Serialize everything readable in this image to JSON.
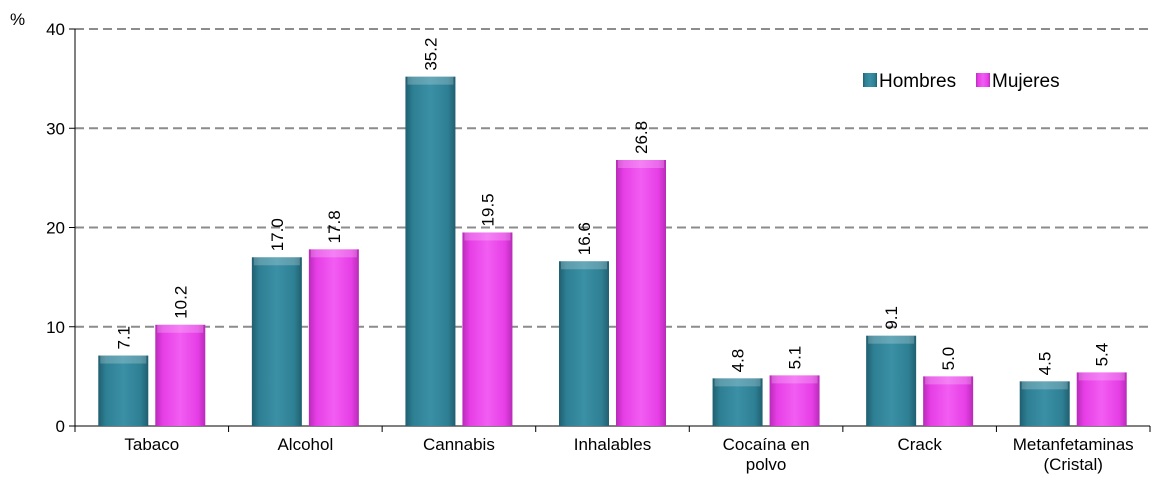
{
  "chart_data": {
    "type": "bar",
    "title": "",
    "xlabel": "",
    "ylabel": "%",
    "ylim": [
      0,
      40
    ],
    "yticks": [
      0,
      10,
      20,
      30,
      40
    ],
    "grid": true,
    "legend_position": "top-right",
    "categories": [
      [
        "Tabaco"
      ],
      [
        "Alcohol"
      ],
      [
        "Cannabis"
      ],
      [
        "Inhalables"
      ],
      [
        "Cocaína en",
        "polvo"
      ],
      [
        "Crack"
      ],
      [
        "Metanfetaminas",
        "(Cristal)"
      ]
    ],
    "series": [
      {
        "name": "Hombres",
        "color": "#2e7f93",
        "values": [
          7.1,
          17.0,
          35.2,
          16.6,
          4.8,
          9.1,
          4.5
        ],
        "labels": [
          "7.1",
          "17.0",
          "35.2",
          "16.6",
          "4.8",
          "9.1",
          "4.5"
        ]
      },
      {
        "name": "Mujeres",
        "color": "#e63ee6",
        "values": [
          10.2,
          17.8,
          19.5,
          26.8,
          5.1,
          5.0,
          5.4
        ],
        "labels": [
          "10.2",
          "17.8",
          "19.5",
          "26.8",
          "5.1",
          "5.0",
          "5.4"
        ]
      }
    ]
  }
}
